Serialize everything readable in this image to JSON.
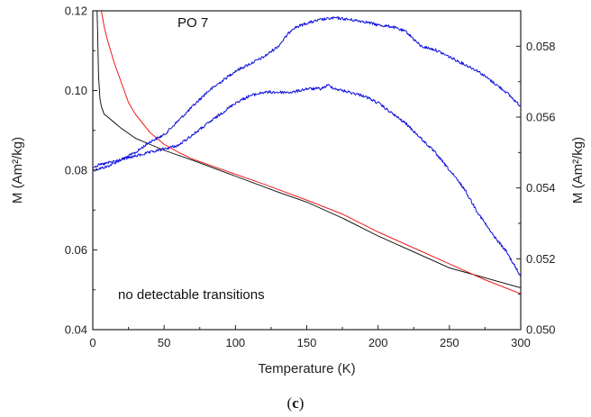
{
  "chart_data": {
    "type": "line",
    "title": "PO 7",
    "annotation": "no detectable transitions",
    "caption_open": "(",
    "caption_letter": "c",
    "caption_close": ")",
    "xlabel": "Temperature (K)",
    "ylabel_left": "M (Am²/kg)",
    "ylabel_right": "M (Am²/kg)",
    "xlim": [
      0,
      300
    ],
    "ylim_left": [
      0.04,
      0.12
    ],
    "ylim_right": [
      0.05,
      0.059
    ],
    "x_ticks": [
      "0",
      "50",
      "100",
      "150",
      "200",
      "250",
      "300"
    ],
    "y_left_ticks": [
      "0.04",
      "0.06",
      "0.08",
      "0.10",
      "0.12"
    ],
    "y_right_ticks": [
      "0.050",
      "0.052",
      "0.054",
      "0.056",
      "0.058"
    ],
    "grid": false,
    "series": [
      {
        "axis": "left",
        "color": "#000000",
        "noisy": false,
        "x": [
          3,
          3.5,
          4,
          5,
          6,
          8,
          10,
          15,
          20,
          30,
          40,
          50,
          70,
          100,
          130,
          150,
          175,
          200,
          225,
          250,
          275,
          300
        ],
        "y": [
          0.12,
          0.113,
          0.104,
          0.098,
          0.096,
          0.094,
          0.0935,
          0.092,
          0.0905,
          0.088,
          0.0865,
          0.085,
          0.0825,
          0.0785,
          0.0745,
          0.072,
          0.068,
          0.0635,
          0.0595,
          0.0555,
          0.053,
          0.0505
        ]
      },
      {
        "axis": "left",
        "color": "#ee0000",
        "noisy": false,
        "x": [
          6,
          8,
          10,
          15,
          20,
          25,
          30,
          40,
          50,
          60,
          70,
          80,
          100,
          120,
          150,
          175,
          200,
          225,
          250,
          275,
          300
        ],
        "y": [
          0.12,
          0.116,
          0.113,
          0.107,
          0.102,
          0.097,
          0.094,
          0.0895,
          0.0865,
          0.0845,
          0.0828,
          0.0815,
          0.079,
          0.0765,
          0.0725,
          0.069,
          0.0645,
          0.0605,
          0.0565,
          0.0525,
          0.049
        ]
      },
      {
        "axis": "right",
        "color": "#1010dd",
        "noisy": true,
        "x": [
          0,
          10,
          20,
          30,
          40,
          50,
          60,
          70,
          80,
          90,
          100,
          110,
          120,
          130,
          140,
          150,
          160,
          170,
          180,
          190,
          200,
          210,
          220,
          230,
          240,
          250,
          260,
          270,
          280,
          290,
          300
        ],
        "y": [
          0.0545,
          0.0546,
          0.0548,
          0.055,
          0.0553,
          0.0555,
          0.0559,
          0.0563,
          0.0567,
          0.057,
          0.0573,
          0.0575,
          0.0577,
          0.058,
          0.0585,
          0.05865,
          0.05875,
          0.0588,
          0.05875,
          0.0587,
          0.0586,
          0.05855,
          0.0584,
          0.058,
          0.0579,
          0.0577,
          0.0575,
          0.0573,
          0.057,
          0.0567,
          0.0563
        ]
      },
      {
        "axis": "right",
        "color": "#1010dd",
        "noisy": true,
        "x": [
          0,
          10,
          20,
          30,
          40,
          50,
          60,
          70,
          80,
          90,
          100,
          110,
          120,
          130,
          140,
          150,
          160,
          165,
          170,
          180,
          190,
          200,
          210,
          220,
          230,
          240,
          250,
          260,
          270,
          280,
          290,
          300
        ],
        "y": [
          0.0546,
          0.0547,
          0.0548,
          0.0549,
          0.055,
          0.0551,
          0.0552,
          0.0555,
          0.0558,
          0.0561,
          0.0564,
          0.0566,
          0.0567,
          0.0567,
          0.0567,
          0.0568,
          0.0568,
          0.0569,
          0.0568,
          0.0567,
          0.0566,
          0.0564,
          0.0561,
          0.0558,
          0.0554,
          0.055,
          0.0545,
          0.054,
          0.0533,
          0.0527,
          0.0522,
          0.0515
        ]
      }
    ]
  }
}
